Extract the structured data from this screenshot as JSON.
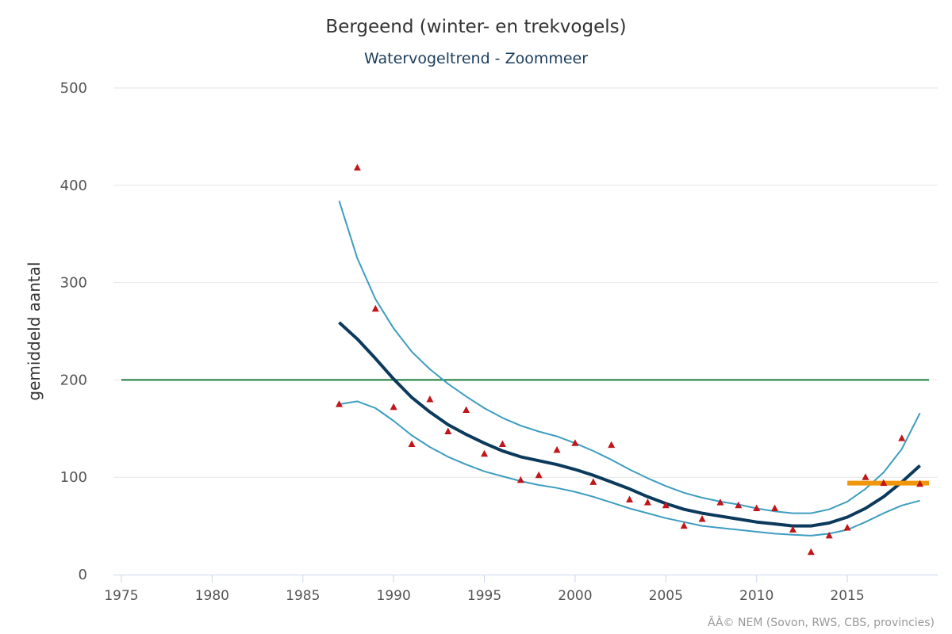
{
  "chart_data": {
    "type": "line",
    "title": "Bergeend (winter- en trekvogels)",
    "subtitle": "Watervogeltrend - Zoommeer",
    "ylabel": "gemiddeld aantal",
    "xlabel": "",
    "xlim": [
      1975,
      2019.5
    ],
    "ylim": [
      0,
      500
    ],
    "x_ticks": [
      "1975",
      "1980",
      "1985",
      "1990",
      "1995",
      "2000",
      "2005",
      "2010",
      "2015"
    ],
    "y_ticks": [
      "0",
      "100",
      "200",
      "300",
      "400",
      "500"
    ],
    "grid": "horizontal",
    "reference_line": {
      "y": 200,
      "x_from": 1975,
      "x_to": 2019.5,
      "color": "#1a7a3a"
    },
    "series": [
      {
        "kind": "trend",
        "color": "#0b3a5c",
        "x": [
          1987,
          1988,
          1989,
          1990,
          1991,
          1992,
          1993,
          1994,
          1995,
          1996,
          1997,
          1998,
          1999,
          2000,
          2001,
          2002,
          2003,
          2004,
          2005,
          2006,
          2007,
          2008,
          2009,
          2010,
          2011,
          2012,
          2013,
          2014,
          2015,
          2016,
          2017,
          2018,
          2019
        ],
        "y": [
          259,
          242,
          222,
          201,
          182,
          167,
          154,
          144,
          135,
          127,
          121,
          117,
          113,
          108,
          102,
          95,
          88,
          80,
          73,
          67,
          63,
          60,
          57,
          54,
          52,
          50,
          50,
          53,
          59,
          68,
          80,
          95,
          112
        ]
      },
      {
        "kind": "upper-bound",
        "color": "#3d9dc0",
        "x": [
          1987,
          1988,
          1989,
          1990,
          1991,
          1992,
          1993,
          1994,
          1995,
          1996,
          1997,
          1998,
          1999,
          2000,
          2001,
          2002,
          2003,
          2004,
          2005,
          2006,
          2007,
          2008,
          2009,
          2010,
          2011,
          2012,
          2013,
          2014,
          2015,
          2016,
          2017,
          2018,
          2019
        ],
        "y": [
          384,
          325,
          283,
          253,
          229,
          211,
          196,
          183,
          171,
          161,
          153,
          147,
          142,
          135,
          127,
          118,
          108,
          99,
          91,
          84,
          79,
          75,
          72,
          68,
          65,
          63,
          63,
          67,
          75,
          88,
          105,
          129,
          166
        ]
      },
      {
        "kind": "lower-bound",
        "color": "#3d9dc0",
        "x": [
          1987,
          1988,
          1989,
          1990,
          1991,
          1992,
          1993,
          1994,
          1995,
          1996,
          1997,
          1998,
          1999,
          2000,
          2001,
          2002,
          2003,
          2004,
          2005,
          2006,
          2007,
          2008,
          2009,
          2010,
          2011,
          2012,
          2013,
          2014,
          2015,
          2016,
          2017,
          2018,
          2019
        ],
        "y": [
          175,
          178,
          171,
          158,
          143,
          131,
          121,
          113,
          106,
          101,
          96,
          92,
          89,
          85,
          80,
          74,
          68,
          63,
          58,
          54,
          50,
          48,
          46,
          44,
          42,
          41,
          40,
          42,
          46,
          54,
          63,
          71,
          76
        ]
      },
      {
        "kind": "recent-mean",
        "color": "#f0960a",
        "x": [
          2015,
          2019.5
        ],
        "y": [
          94,
          94
        ]
      },
      {
        "kind": "observed",
        "color": "#c0161a",
        "x": [
          1987,
          1988,
          1989,
          1990,
          1991,
          1992,
          1993,
          1994,
          1995,
          1996,
          1997,
          1998,
          1999,
          2000,
          2001,
          2002,
          2003,
          2004,
          2005,
          2006,
          2007,
          2008,
          2009,
          2010,
          2011,
          2012,
          2013,
          2014,
          2015,
          2016,
          2017,
          2018,
          2019
        ],
        "y": [
          175,
          418,
          273,
          172,
          134,
          180,
          147,
          169,
          124,
          134,
          97,
          102,
          128,
          135,
          95,
          133,
          77,
          74,
          71,
          50,
          57,
          74,
          71,
          68,
          68,
          46,
          23,
          40,
          48,
          100,
          94,
          140,
          93
        ]
      }
    ],
    "credits": "ÃÂ© NEM (Sovon, RWS, CBS, provincies)"
  }
}
